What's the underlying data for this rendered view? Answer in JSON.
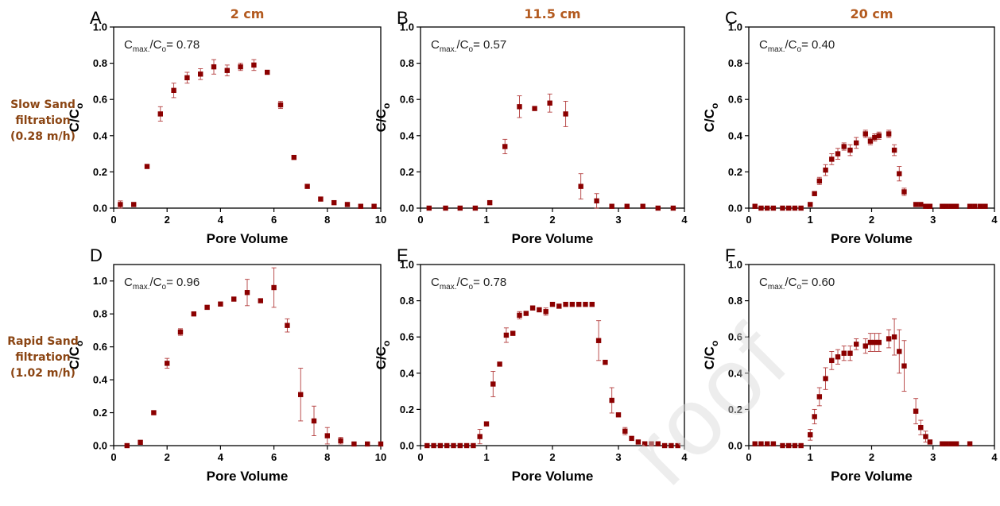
{
  "row_labels": [
    "Slow Sand\nfiltration\n(0.28 m/h)",
    "Rapid Sand\nfiltration\n(1.02 m/h)"
  ],
  "watermark": "roof",
  "colors": {
    "marker": "#8b0000",
    "heading": "#b35a1f",
    "row_label": "#8b4513",
    "axis": "#000000"
  },
  "chart_data": [
    {
      "type": "scatter",
      "panel": "A",
      "title": "2 cm",
      "xlabel": "Pore Volume",
      "ylabel": "C/C",
      "ylabel_sub": "o",
      "annotation": "0.78",
      "xlim": [
        0,
        10
      ],
      "ylim": [
        0,
        1.0
      ],
      "xticks": [
        0,
        2,
        4,
        6,
        8,
        10
      ],
      "yticks": [
        0.0,
        0.2,
        0.4,
        0.6,
        0.8,
        1.0
      ],
      "series": [
        {
          "x": [
            0.25,
            0.75,
            1.25,
            1.75,
            2.25,
            2.75,
            3.25,
            3.75,
            4.25,
            4.75,
            5.25,
            5.75,
            6.25,
            6.75,
            7.25,
            7.75,
            8.25,
            8.75,
            9.25,
            9.75
          ],
          "y": [
            0.02,
            0.02,
            0.23,
            0.52,
            0.65,
            0.72,
            0.74,
            0.78,
            0.76,
            0.78,
            0.79,
            0.75,
            0.57,
            0.28,
            0.12,
            0.05,
            0.03,
            0.02,
            0.01,
            0.01
          ],
          "err": [
            0.02,
            0.01,
            0.01,
            0.04,
            0.04,
            0.03,
            0.03,
            0.04,
            0.03,
            0.02,
            0.03,
            0.01,
            0.02,
            0.01,
            0.01,
            0.01,
            0.01,
            0.01,
            0.01,
            0.01
          ]
        }
      ]
    },
    {
      "type": "scatter",
      "panel": "B",
      "title": "11.5 cm",
      "xlabel": "Pore Volume",
      "ylabel": "C/C",
      "ylabel_sub": "o",
      "annotation": "0.57",
      "xlim": [
        0,
        4
      ],
      "ylim": [
        0,
        1.0
      ],
      "xticks": [
        0,
        1,
        2,
        3,
        4
      ],
      "yticks": [
        0.0,
        0.2,
        0.4,
        0.6,
        0.8,
        1.0
      ],
      "series": [
        {
          "x": [
            0.13,
            0.38,
            0.6,
            0.83,
            1.05,
            1.28,
            1.5,
            1.73,
            1.96,
            2.2,
            2.43,
            2.67,
            2.9,
            3.13,
            3.37,
            3.6,
            3.83
          ],
          "y": [
            0.0,
            0.0,
            0.0,
            0.0,
            0.03,
            0.34,
            0.56,
            0.55,
            0.58,
            0.52,
            0.12,
            0.04,
            0.01,
            0.01,
            0.01,
            0.0,
            0.0
          ],
          "err": [
            0,
            0,
            0,
            0,
            0.01,
            0.04,
            0.06,
            0.01,
            0.05,
            0.07,
            0.07,
            0.04,
            0,
            0,
            0,
            0,
            0
          ]
        }
      ]
    },
    {
      "type": "scatter",
      "panel": "C",
      "title": "20 cm",
      "xlabel": "Pore Volume",
      "ylabel": "C/C",
      "ylabel_sub": "o",
      "annotation": "0.40",
      "xlim": [
        0,
        4
      ],
      "ylim": [
        0,
        1.0
      ],
      "xticks": [
        0,
        1,
        2,
        3,
        4
      ],
      "yticks": [
        0.0,
        0.2,
        0.4,
        0.6,
        0.8,
        1.0
      ],
      "series": [
        {
          "x": [
            0.1,
            0.2,
            0.3,
            0.4,
            0.55,
            0.65,
            0.75,
            0.85,
            1.0,
            1.07,
            1.15,
            1.25,
            1.35,
            1.45,
            1.55,
            1.65,
            1.75,
            1.9,
            1.98,
            2.05,
            2.12,
            2.28,
            2.37,
            2.45,
            2.53,
            2.72,
            2.8,
            2.88,
            2.95,
            3.15,
            3.22,
            3.3,
            3.38,
            3.6,
            3.68,
            3.77,
            3.85
          ],
          "y": [
            0.01,
            0.0,
            0.0,
            0.0,
            0.0,
            0.0,
            0.0,
            0.0,
            0.02,
            0.08,
            0.15,
            0.21,
            0.27,
            0.3,
            0.34,
            0.32,
            0.36,
            0.41,
            0.37,
            0.39,
            0.4,
            0.41,
            0.32,
            0.19,
            0.09,
            0.02,
            0.02,
            0.01,
            0.01,
            0.01,
            0.01,
            0.01,
            0.01,
            0.01,
            0.01,
            0.01,
            0.01
          ],
          "err": [
            0,
            0,
            0,
            0,
            0,
            0,
            0,
            0,
            0.01,
            0.01,
            0.02,
            0.03,
            0.03,
            0.03,
            0.02,
            0.03,
            0.03,
            0.02,
            0.02,
            0.02,
            0.02,
            0.02,
            0.03,
            0.04,
            0.02,
            0,
            0,
            0,
            0,
            0,
            0,
            0,
            0,
            0,
            0,
            0,
            0
          ]
        }
      ]
    },
    {
      "type": "scatter",
      "panel": "D",
      "title": "",
      "xlabel": "Pore Volume",
      "ylabel": "C/C",
      "ylabel_sub": "o",
      "annotation": "0.96",
      "xlim": [
        0,
        10
      ],
      "ylim": [
        0,
        1.1
      ],
      "xticks": [
        0,
        2,
        4,
        6,
        8,
        10
      ],
      "yticks": [
        0.0,
        0.2,
        0.4,
        0.6,
        0.8,
        1.0
      ],
      "series": [
        {
          "x": [
            0.5,
            1.0,
            1.5,
            2.0,
            2.5,
            3.0,
            3.5,
            4.0,
            4.5,
            5.0,
            5.5,
            6.0,
            6.5,
            7.0,
            7.5,
            8.0,
            8.5,
            9.0,
            9.5,
            10.0
          ],
          "y": [
            0.0,
            0.02,
            0.2,
            0.5,
            0.69,
            0.8,
            0.84,
            0.86,
            0.89,
            0.93,
            0.88,
            0.96,
            0.73,
            0.31,
            0.15,
            0.06,
            0.03,
            0.01,
            0.01,
            0.01
          ],
          "err": [
            0,
            0.01,
            0.01,
            0.03,
            0.02,
            0.01,
            0.01,
            0.01,
            0.01,
            0.08,
            0.01,
            0.12,
            0.04,
            0.16,
            0.09,
            0.05,
            0.02,
            0.01,
            0.01,
            0
          ]
        }
      ]
    },
    {
      "type": "scatter",
      "panel": "E",
      "title": "",
      "xlabel": "Pore Volume",
      "ylabel": "C/C",
      "ylabel_sub": "o",
      "annotation": "0.78",
      "xlim": [
        0,
        4
      ],
      "ylim": [
        0,
        1.0
      ],
      "xticks": [
        0,
        1,
        2,
        3,
        4
      ],
      "yticks": [
        0.0,
        0.2,
        0.4,
        0.6,
        0.8,
        1.0
      ],
      "series": [
        {
          "x": [
            0.1,
            0.2,
            0.3,
            0.4,
            0.5,
            0.6,
            0.7,
            0.8,
            0.9,
            1.0,
            1.1,
            1.2,
            1.3,
            1.4,
            1.5,
            1.6,
            1.7,
            1.8,
            1.9,
            2.0,
            2.1,
            2.2,
            2.3,
            2.4,
            2.5,
            2.6,
            2.7,
            2.8,
            2.9,
            3.0,
            3.1,
            3.2,
            3.3,
            3.4,
            3.5,
            3.6,
            3.7,
            3.8,
            3.9
          ],
          "y": [
            0.0,
            0.0,
            0.0,
            0.0,
            0.0,
            0.0,
            0.0,
            0.0,
            0.05,
            0.12,
            0.34,
            0.45,
            0.61,
            0.62,
            0.72,
            0.73,
            0.76,
            0.75,
            0.74,
            0.78,
            0.77,
            0.78,
            0.78,
            0.78,
            0.78,
            0.78,
            0.58,
            0.46,
            0.25,
            0.17,
            0.08,
            0.04,
            0.02,
            0.01,
            0.01,
            0.01,
            0.0,
            0.0,
            0.0
          ],
          "err": [
            0,
            0,
            0,
            0,
            0,
            0,
            0,
            0,
            0.04,
            0.01,
            0.07,
            0.01,
            0.04,
            0.01,
            0.02,
            0.01,
            0.01,
            0.01,
            0.02,
            0.01,
            0.01,
            0.01,
            0.01,
            0.01,
            0.01,
            0.01,
            0.11,
            0.01,
            0.07,
            0.01,
            0.02,
            0.01,
            0,
            0,
            0,
            0,
            0,
            0,
            0
          ]
        }
      ]
    },
    {
      "type": "scatter",
      "panel": "F",
      "title": "",
      "xlabel": "Pore Volume",
      "ylabel": "C/C",
      "ylabel_sub": "o",
      "annotation": "0.60",
      "xlim": [
        0,
        4
      ],
      "ylim": [
        0,
        1.0
      ],
      "xticks": [
        0,
        1,
        2,
        3,
        4
      ],
      "yticks": [
        0.0,
        0.2,
        0.4,
        0.6,
        0.8,
        1.0
      ],
      "series": [
        {
          "x": [
            0.1,
            0.2,
            0.3,
            0.4,
            0.55,
            0.65,
            0.75,
            0.85,
            1.0,
            1.07,
            1.15,
            1.25,
            1.35,
            1.45,
            1.55,
            1.65,
            1.75,
            1.9,
            1.98,
            2.05,
            2.12,
            2.28,
            2.37,
            2.45,
            2.53,
            2.72,
            2.8,
            2.88,
            2.95,
            3.15,
            3.22,
            3.3,
            3.38,
            3.6
          ],
          "y": [
            0.01,
            0.01,
            0.01,
            0.01,
            0.0,
            0.0,
            0.0,
            0.0,
            0.06,
            0.16,
            0.27,
            0.37,
            0.47,
            0.49,
            0.51,
            0.51,
            0.56,
            0.55,
            0.57,
            0.57,
            0.57,
            0.59,
            0.6,
            0.52,
            0.44,
            0.19,
            0.1,
            0.05,
            0.02,
            0.01,
            0.01,
            0.01,
            0.01,
            0.01
          ],
          "err": [
            0,
            0,
            0,
            0,
            0,
            0,
            0,
            0,
            0.03,
            0.04,
            0.05,
            0.06,
            0.05,
            0.04,
            0.04,
            0.04,
            0.03,
            0.04,
            0.05,
            0.05,
            0.05,
            0.05,
            0.1,
            0.12,
            0.14,
            0.07,
            0.04,
            0.03,
            0.01,
            0,
            0,
            0,
            0,
            0
          ]
        }
      ]
    }
  ]
}
